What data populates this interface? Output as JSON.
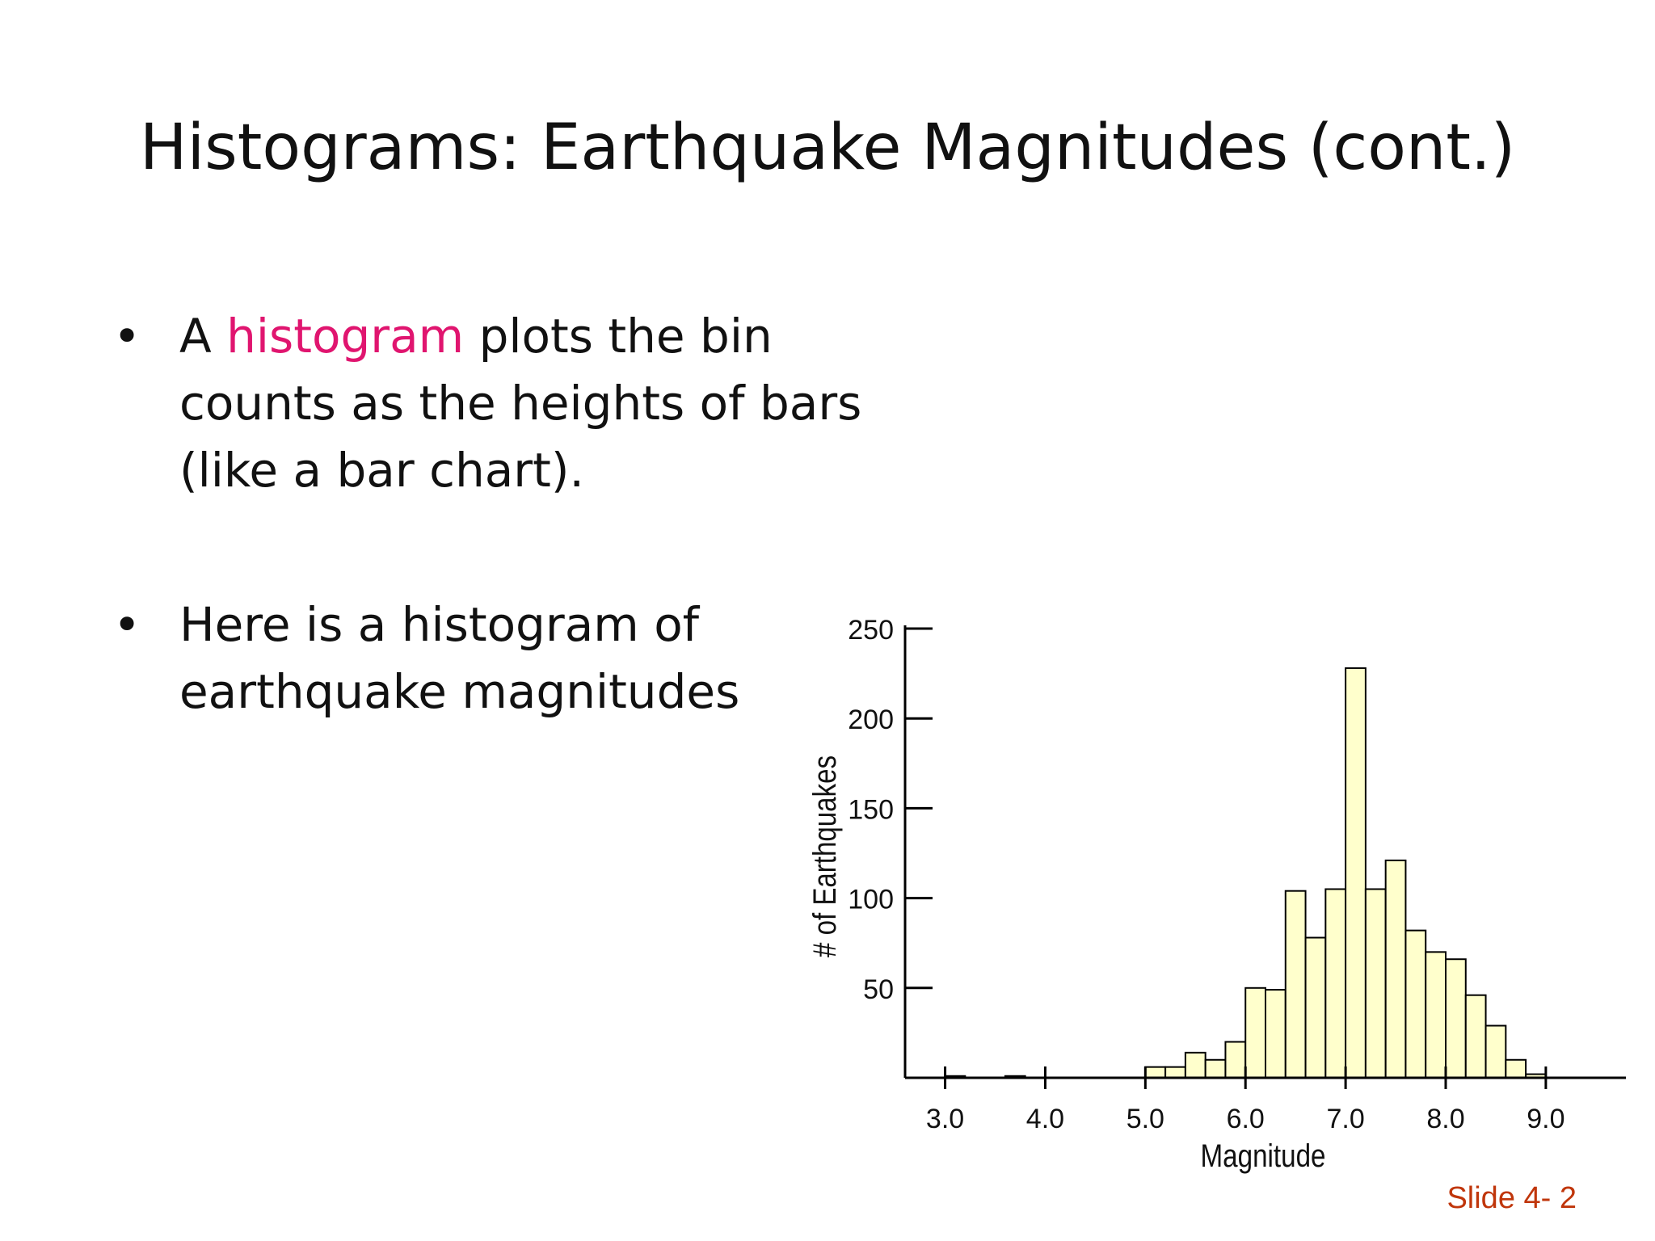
{
  "slide": {
    "title": "Histograms: Earthquake Magnitudes (cont.)",
    "number_label": "Slide 4- 2"
  },
  "bullets": [
    {
      "bullet_char": "•",
      "prefix": "A ",
      "highlight": "histogram",
      "line1_rest": " plots the bin",
      "line2": "counts as the heights of bars",
      "line3": "(like a bar chart)."
    },
    {
      "bullet_char": "•",
      "line1": "Here is a histogram of",
      "line2": "earthquake magnitudes"
    }
  ],
  "colors": {
    "accent": "#e0156f",
    "bar_fill": "#ffffcc",
    "bar_stroke": "#000000",
    "slide_number": "#c0360b"
  },
  "chart_data": {
    "type": "bar",
    "title": "",
    "xlabel": "Magnitude",
    "ylabel": "# of Earthquakes",
    "bin_width": 0.2,
    "xlim": [
      2.6,
      9.8
    ],
    "ylim": [
      0,
      250
    ],
    "x_ticks": [
      3,
      4,
      5,
      6,
      7,
      8,
      9
    ],
    "x_tick_labels": [
      "3.0",
      "4.0",
      "5.0",
      "6.0",
      "7.0",
      "8.0",
      "9.0"
    ],
    "y_ticks": [
      50,
      100,
      150,
      200,
      250
    ],
    "y_tick_labels": [
      "50",
      "100",
      "150",
      "200",
      "250"
    ],
    "bins": [
      {
        "start": 3.0,
        "count": 1
      },
      {
        "start": 3.6,
        "count": 1
      },
      {
        "start": 5.0,
        "count": 6
      },
      {
        "start": 5.2,
        "count": 6
      },
      {
        "start": 5.4,
        "count": 14
      },
      {
        "start": 5.6,
        "count": 10
      },
      {
        "start": 5.8,
        "count": 20
      },
      {
        "start": 6.0,
        "count": 50
      },
      {
        "start": 6.2,
        "count": 49
      },
      {
        "start": 6.4,
        "count": 104
      },
      {
        "start": 6.6,
        "count": 78
      },
      {
        "start": 6.8,
        "count": 105
      },
      {
        "start": 7.0,
        "count": 228
      },
      {
        "start": 7.2,
        "count": 105
      },
      {
        "start": 7.4,
        "count": 121
      },
      {
        "start": 7.6,
        "count": 82
      },
      {
        "start": 7.8,
        "count": 70
      },
      {
        "start": 8.0,
        "count": 66
      },
      {
        "start": 8.2,
        "count": 46
      },
      {
        "start": 8.4,
        "count": 29
      },
      {
        "start": 8.6,
        "count": 10
      },
      {
        "start": 8.8,
        "count": 2
      }
    ],
    "grid": false,
    "legend": "none"
  }
}
